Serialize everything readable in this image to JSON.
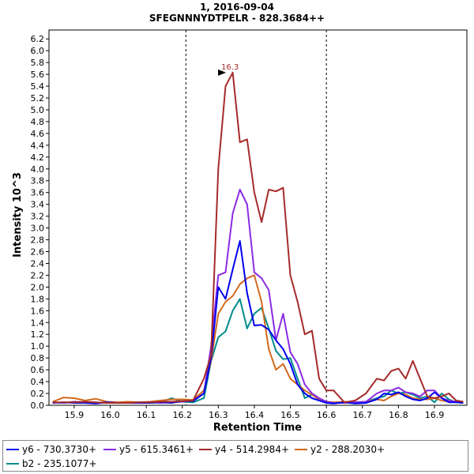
{
  "chart_data": {
    "type": "line",
    "title": "1, 2016-09-04",
    "subtitle": "SFEGNNNYDTPELR - 828.3684++",
    "xlabel": "Retention Time",
    "ylabel": "Intensity 10^3",
    "xlim": [
      15.83,
      16.99
    ],
    "ylim": [
      0,
      6.35
    ],
    "x_ticks": [
      "15.9",
      "16.0",
      "16.1",
      "16.2",
      "16.3",
      "16.4",
      "16.5",
      "16.6",
      "16.7",
      "16.8",
      "16.9"
    ],
    "y_ticks": [
      "0.0",
      "0.2",
      "0.4",
      "0.6",
      "0.8",
      "1.0",
      "1.2",
      "1.4",
      "1.6",
      "1.8",
      "2.0",
      "2.2",
      "2.4",
      "2.6",
      "2.8",
      "3.0",
      "3.2",
      "3.4",
      "3.6",
      "3.8",
      "4.0",
      "4.2",
      "4.4",
      "4.6",
      "4.8",
      "5.0",
      "5.2",
      "5.4",
      "5.6",
      "5.8",
      "6.0",
      "6.2"
    ],
    "integration_bounds": [
      16.21,
      16.6
    ],
    "peak_annotation": {
      "label": "16.3",
      "x": 16.33,
      "y": 5.63
    },
    "x": [
      15.84,
      15.87,
      15.9,
      15.93,
      15.96,
      15.99,
      16.02,
      16.05,
      16.08,
      16.11,
      16.14,
      16.17,
      16.2,
      16.23,
      16.26,
      16.28,
      16.3,
      16.32,
      16.34,
      16.36,
      16.38,
      16.4,
      16.42,
      16.44,
      16.46,
      16.48,
      16.5,
      16.52,
      16.54,
      16.56,
      16.58,
      16.6,
      16.62,
      16.65,
      16.68,
      16.71,
      16.74,
      16.76,
      16.78,
      16.8,
      16.82,
      16.84,
      16.86,
      16.88,
      16.9,
      16.92,
      16.94,
      16.96,
      16.98
    ],
    "series": [
      {
        "name": "y6 - 730.3730+",
        "color": "#0000ee",
        "values": [
          0.04,
          0.05,
          0.04,
          0.04,
          0.03,
          0.05,
          0.04,
          0.04,
          0.04,
          0.04,
          0.05,
          0.04,
          0.07,
          0.07,
          0.2,
          0.8,
          2.0,
          1.8,
          2.3,
          2.78,
          1.9,
          1.35,
          1.36,
          1.28,
          1.1,
          0.95,
          0.7,
          0.35,
          0.2,
          0.12,
          0.08,
          0.04,
          0.03,
          0.05,
          0.03,
          0.04,
          0.1,
          0.2,
          0.18,
          0.22,
          0.15,
          0.1,
          0.08,
          0.12,
          0.22,
          0.12,
          0.05,
          0.05,
          0.04
        ]
      },
      {
        "name": "y5 - 615.3461+",
        "color": "#8a2be2",
        "values": [
          0.05,
          0.04,
          0.06,
          0.05,
          0.04,
          0.05,
          0.04,
          0.04,
          0.04,
          0.05,
          0.04,
          0.05,
          0.06,
          0.08,
          0.2,
          1.0,
          2.2,
          2.25,
          3.25,
          3.65,
          3.4,
          2.25,
          2.15,
          1.95,
          1.1,
          1.55,
          0.9,
          0.7,
          0.35,
          0.2,
          0.12,
          0.06,
          0.04,
          0.04,
          0.05,
          0.06,
          0.2,
          0.25,
          0.25,
          0.3,
          0.22,
          0.2,
          0.15,
          0.25,
          0.25,
          0.12,
          0.08,
          0.06,
          0.05
        ]
      },
      {
        "name": "y4 - 514.2984+",
        "color": "#a52a2a",
        "values": [
          0.05,
          0.05,
          0.05,
          0.06,
          0.05,
          0.04,
          0.04,
          0.04,
          0.05,
          0.05,
          0.06,
          0.06,
          0.07,
          0.08,
          0.45,
          0.85,
          4.0,
          5.4,
          5.63,
          4.45,
          4.5,
          3.6,
          3.1,
          3.65,
          3.62,
          3.68,
          2.2,
          1.75,
          1.2,
          1.26,
          0.45,
          0.25,
          0.25,
          0.05,
          0.08,
          0.2,
          0.45,
          0.42,
          0.58,
          0.62,
          0.45,
          0.75,
          0.45,
          0.15,
          0.12,
          0.15,
          0.2,
          0.08,
          0.06
        ]
      },
      {
        "name": "y2 - 288.2030+",
        "color": "#d2691e",
        "values": [
          0.06,
          0.13,
          0.12,
          0.08,
          0.11,
          0.06,
          0.05,
          0.06,
          0.05,
          0.06,
          0.08,
          0.1,
          0.1,
          0.09,
          0.25,
          0.75,
          1.55,
          1.75,
          1.85,
          2.05,
          2.15,
          2.2,
          1.75,
          0.95,
          0.6,
          0.7,
          0.45,
          0.35,
          0.25,
          0.18,
          0.1,
          0.06,
          0.05,
          0.06,
          0.05,
          0.06,
          0.1,
          0.08,
          0.15,
          0.2,
          0.18,
          0.12,
          0.1,
          0.1,
          0.12,
          0.08,
          0.06,
          0.05,
          0.05
        ]
      },
      {
        "name": "b2 - 235.1077+",
        "color": "#008b8b",
        "values": [
          0.05,
          0.04,
          0.05,
          0.04,
          0.04,
          0.04,
          0.04,
          0.04,
          0.05,
          0.04,
          0.05,
          0.12,
          0.06,
          0.05,
          0.12,
          0.75,
          1.15,
          1.25,
          1.6,
          1.8,
          1.3,
          1.55,
          1.65,
          1.3,
          0.92,
          0.78,
          0.8,
          0.45,
          0.12,
          0.18,
          0.1,
          0.06,
          0.04,
          0.05,
          0.04,
          0.06,
          0.12,
          0.15,
          0.25,
          0.2,
          0.22,
          0.18,
          0.12,
          0.15,
          0.05,
          0.2,
          0.1,
          0.05,
          0.04
        ]
      }
    ]
  }
}
